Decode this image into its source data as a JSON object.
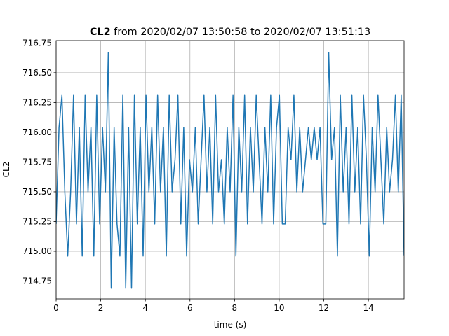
{
  "chart_data": {
    "type": "line",
    "title": {
      "bold": "CL2",
      "rest": "from 2020/02/07 13:50:58 to 2020/02/07 13:51:13"
    },
    "xlabel": "time (s)",
    "ylabel": "CL2",
    "x": [
      0,
      0.13,
      0.26,
      0.39,
      0.52,
      0.65,
      0.78,
      0.91,
      1.04,
      1.17,
      1.3,
      1.43,
      1.56,
      1.69,
      1.82,
      1.95,
      2.08,
      2.21,
      2.34,
      2.47,
      2.6,
      2.73,
      2.86,
      2.99,
      3.12,
      3.25,
      3.38,
      3.51,
      3.64,
      3.77,
      3.9,
      4.03,
      4.16,
      4.29,
      4.42,
      4.55,
      4.68,
      4.81,
      4.94,
      5.07,
      5.2,
      5.33,
      5.46,
      5.59,
      5.72,
      5.85,
      5.98,
      6.11,
      6.24,
      6.37,
      6.5,
      6.63,
      6.76,
      6.89,
      7.02,
      7.15,
      7.28,
      7.41,
      7.54,
      7.67,
      7.8,
      7.93,
      8.06,
      8.19,
      8.32,
      8.45,
      8.58,
      8.71,
      8.84,
      8.97,
      9.1,
      9.23,
      9.36,
      9.49,
      9.62,
      9.75,
      9.88,
      10.01,
      10.14,
      10.27,
      10.4,
      10.53,
      10.66,
      10.79,
      10.92,
      11.05,
      11.18,
      11.31,
      11.44,
      11.57,
      11.7,
      11.83,
      11.96,
      12.09,
      12.22,
      12.35,
      12.48,
      12.61,
      12.74,
      12.87,
      13.0,
      13.13,
      13.26,
      13.39,
      13.52,
      13.65,
      13.78,
      13.91,
      14.04,
      14.17,
      14.3,
      14.43,
      14.56,
      14.69,
      14.82,
      14.95,
      15.08,
      15.21,
      15.34,
      15.47,
      15.6
    ],
    "series": [
      {
        "name": "CL2",
        "color": "#1f77b4",
        "values": [
          715.23,
          716.04,
          716.31,
          715.5,
          714.96,
          715.5,
          716.31,
          715.23,
          716.04,
          714.96,
          716.31,
          715.5,
          716.04,
          714.96,
          716.31,
          715.23,
          716.04,
          715.5,
          716.67,
          714.69,
          716.04,
          715.23,
          714.96,
          716.31,
          714.69,
          716.04,
          714.69,
          716.31,
          715.23,
          716.04,
          714.96,
          716.31,
          715.5,
          716.04,
          715.23,
          716.31,
          715.5,
          716.04,
          714.96,
          716.31,
          715.5,
          715.77,
          716.31,
          715.23,
          716.04,
          714.96,
          715.77,
          715.5,
          716.04,
          715.23,
          715.77,
          716.31,
          715.5,
          716.04,
          715.23,
          716.31,
          715.5,
          715.77,
          715.23,
          716.04,
          715.5,
          716.31,
          714.96,
          716.04,
          715.5,
          716.31,
          715.23,
          716.04,
          715.5,
          716.31,
          715.77,
          715.23,
          716.04,
          715.5,
          716.31,
          715.23,
          716.04,
          716.31,
          715.23,
          715.23,
          716.04,
          715.77,
          716.31,
          715.5,
          716.04,
          715.5,
          715.77,
          716.04,
          715.77,
          716.04,
          715.77,
          716.04,
          715.23,
          715.23,
          716.67,
          715.77,
          716.04,
          714.96,
          716.31,
          715.5,
          716.04,
          715.23,
          716.31,
          715.5,
          716.04,
          715.23,
          716.31,
          715.77,
          714.96,
          716.04,
          715.5,
          716.31,
          715.77,
          715.23,
          716.04,
          715.5,
          715.77,
          716.31,
          715.5,
          716.31,
          714.96
        ]
      }
    ],
    "xlim": [
      0,
      15.6
    ],
    "xticks": [
      0,
      2,
      4,
      6,
      8,
      10,
      12,
      14
    ],
    "ylim": [
      714.6,
      716.77
    ],
    "yticks": [
      714.75,
      {
        "value": 715,
        "label": "715.00"
      },
      715.25,
      {
        "value": 715.5,
        "label": "715.50"
      },
      715.75,
      {
        "value": 716,
        "label": "716.00"
      },
      716.25,
      {
        "value": 716.5,
        "label": "716.50"
      },
      716.75
    ],
    "grid": true
  }
}
